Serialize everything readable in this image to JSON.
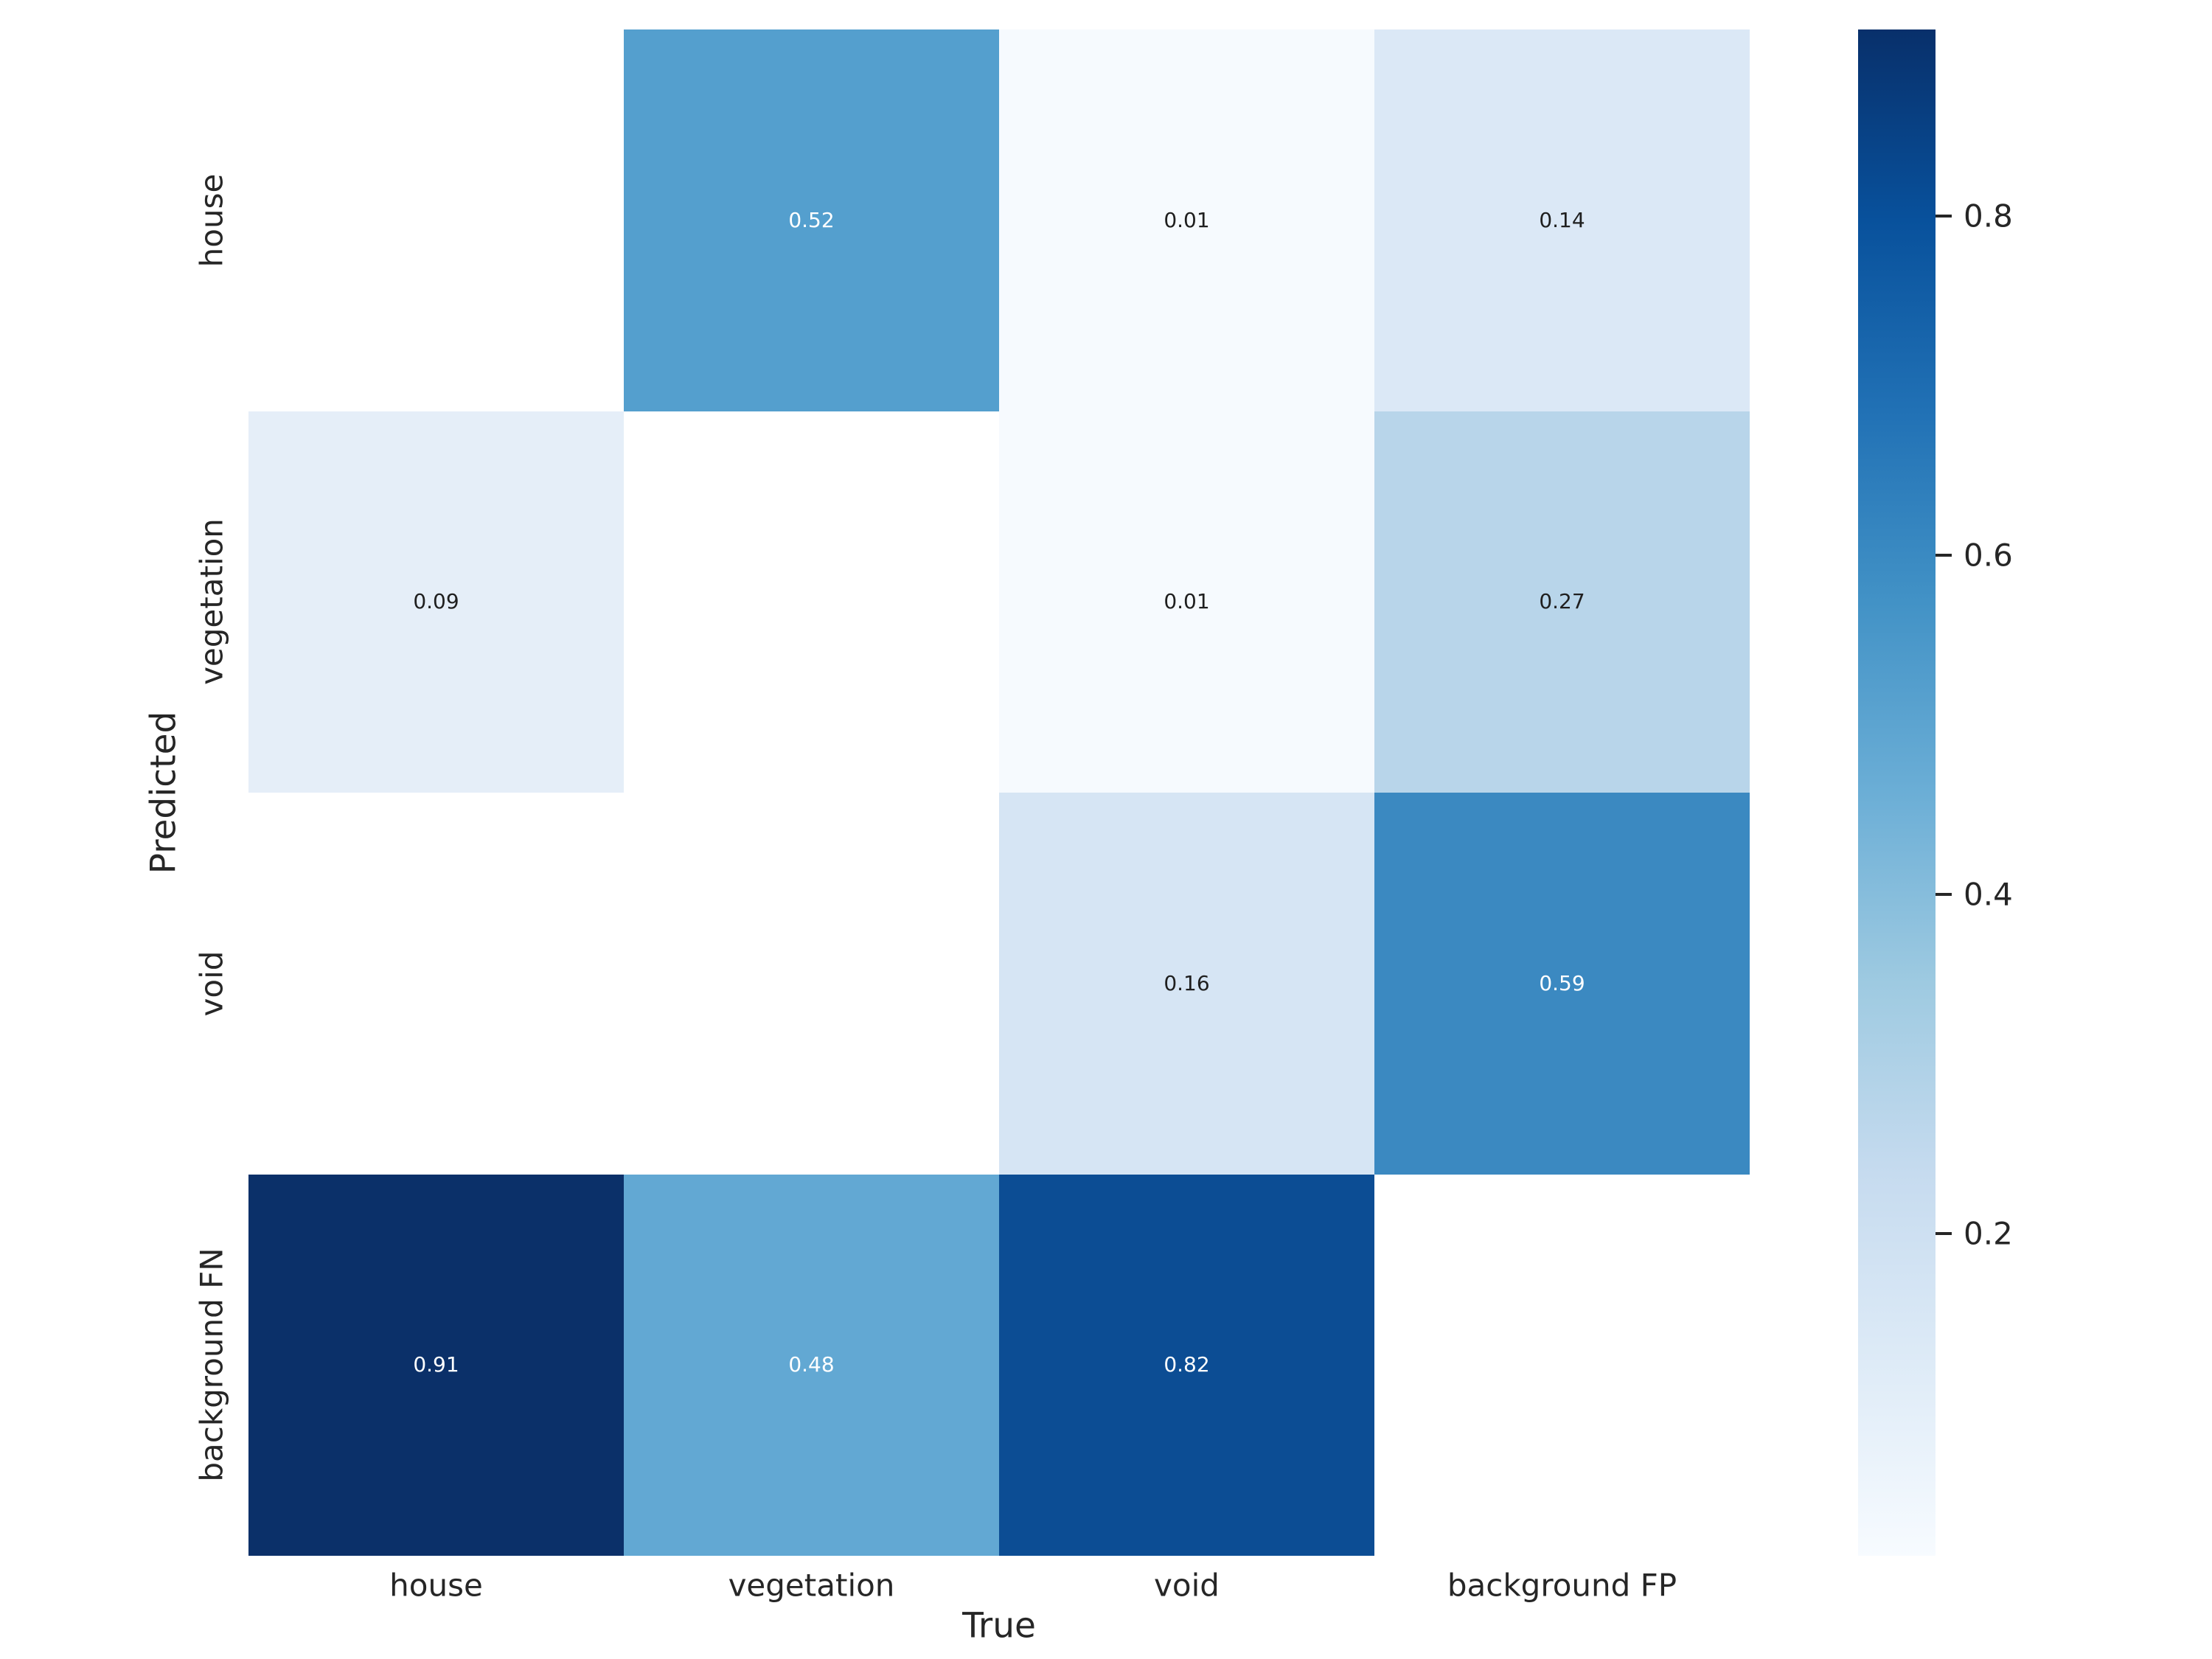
{
  "chart_data": {
    "type": "heatmap",
    "title": "",
    "xlabel": "True",
    "ylabel": "Predicted",
    "x_categories": [
      "house",
      "vegetation",
      "void",
      "background FP"
    ],
    "y_categories": [
      "house",
      "vegetation",
      "void",
      "background FN"
    ],
    "matrix": [
      [
        null,
        0.52,
        0.01,
        0.14
      ],
      [
        0.09,
        null,
        0.01,
        0.27
      ],
      [
        null,
        null,
        0.16,
        0.59
      ],
      [
        0.91,
        0.48,
        0.82,
        null
      ]
    ],
    "annotations": [
      [
        "",
        "0.52",
        "0.01",
        "0.14"
      ],
      [
        "0.09",
        "",
        "0.01",
        "0.27"
      ],
      [
        "",
        "",
        "0.16",
        "0.59"
      ],
      [
        "0.91",
        "0.48",
        "0.82",
        ""
      ]
    ],
    "cell_colors": [
      [
        "#ffffff",
        "#549fce",
        "#f6fafe",
        "#dbe8f6"
      ],
      [
        "#e5eef8",
        "#ffffff",
        "#f6fafe",
        "#b8d5ea"
      ],
      [
        "#ffffff",
        "#ffffff",
        "#d6e5f4",
        "#3b89c1"
      ],
      [
        "#0b3069",
        "#62a8d3",
        "#0c4d94",
        "#ffffff"
      ]
    ],
    "cell_text_colors": [
      [
        "",
        "#ffffff",
        "#1f1f1f",
        "#1f1f1f"
      ],
      [
        "#1f1f1f",
        "",
        "#1f1f1f",
        "#1f1f1f"
      ],
      [
        "",
        "",
        "#1f1f1f",
        "#ffffff"
      ],
      [
        "#ffffff",
        "#ffffff",
        "#ffffff",
        ""
      ]
    ],
    "masked_color": "#ffffff",
    "colormap": "Blues",
    "grid": false,
    "legend_position": "right-colorbar",
    "colorbar": {
      "vmin": 0.01,
      "vmax": 0.91,
      "tick_values": [
        0.8,
        0.6,
        0.4,
        0.2
      ],
      "tick_labels": [
        "0.8",
        "0.6",
        "0.4",
        "0.2"
      ],
      "gradient_top_to_bottom": [
        "#08306b",
        "#08519c",
        "#2171b5",
        "#4292c6",
        "#6baed6",
        "#9ecae1",
        "#c6dbef",
        "#deebf7",
        "#f7fbff"
      ]
    }
  },
  "colors": {
    "figure_background": "#ffffff",
    "tick_text": "#262626",
    "annotation_dark": "#1f1f1f",
    "annotation_light": "#ffffff"
  }
}
